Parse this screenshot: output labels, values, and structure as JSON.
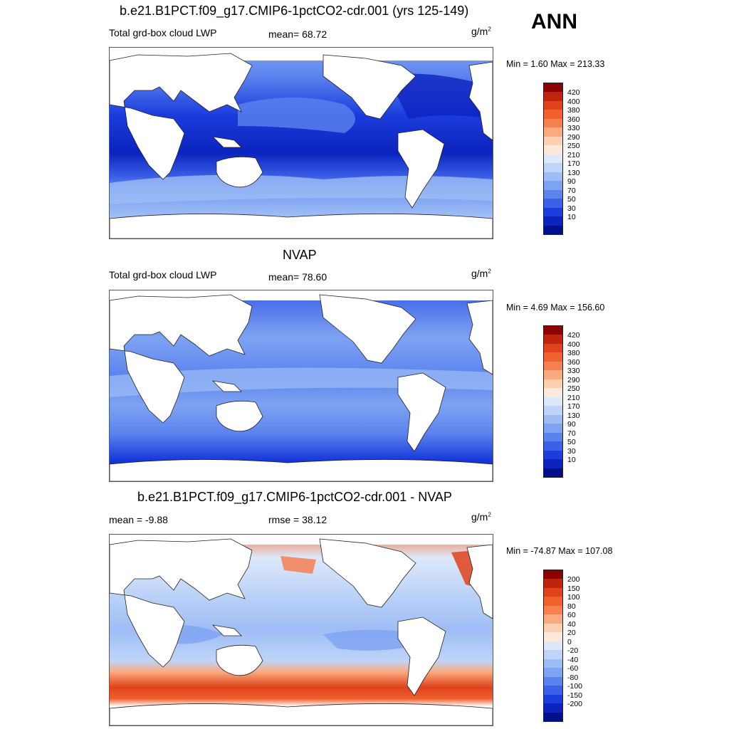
{
  "season": "ANN",
  "units_base": "g/m",
  "units_exp": "2",
  "panels": [
    {
      "title": "b.e21.B1PCT.f09_g17.CMIP6-1pctCO2-cdr.001 (yrs 125-149)",
      "left_label": "Total grd-box cloud LWP",
      "center_label": "mean=  68.72",
      "minmax": "Min =   1.60 Max = 213.33",
      "kind": "model"
    },
    {
      "title": "NVAP",
      "left_label": "Total grd-box cloud LWP",
      "center_label": "mean=  78.60",
      "minmax": "Min =   4.69 Max = 156.60",
      "kind": "obs"
    },
    {
      "title": "b.e21.B1PCT.f09_g17.CMIP6-1pctCO2-cdr.001 - NVAP",
      "left_label": "mean =  -9.88",
      "center_label": "rmse =  38.12",
      "minmax": "Min = -74.87 Max = 107.08",
      "kind": "diff"
    }
  ],
  "colorbars": {
    "field": {
      "labels": [
        "420",
        "400",
        "380",
        "360",
        "330",
        "290",
        "250",
        "210",
        "170",
        "130",
        "90",
        "70",
        "50",
        "30",
        "10"
      ],
      "colors": [
        "#8b0000",
        "#c1240e",
        "#e0421b",
        "#f0612e",
        "#f78052",
        "#fba97e",
        "#fdd0b2",
        "#fde9d9",
        "#dce9fb",
        "#bfd4f8",
        "#9ebdf5",
        "#7ea3f2",
        "#5b83ee",
        "#3c61e8",
        "#1b3ddd",
        "#0c23bf",
        "#000f8c"
      ]
    },
    "diff": {
      "labels": [
        "200",
        "150",
        "100",
        "80",
        "60",
        "40",
        "20",
        "0",
        "-20",
        "-40",
        "-60",
        "-80",
        "-100",
        "-150",
        "-200"
      ],
      "colors": [
        "#8b0000",
        "#c1240e",
        "#e0421b",
        "#f0612e",
        "#f78052",
        "#fba97e",
        "#fdd0b2",
        "#fde9d9",
        "#dce9fb",
        "#bfd4f8",
        "#9ebdf5",
        "#7ea3f2",
        "#5b83ee",
        "#3c61e8",
        "#1b3ddd",
        "#0c23bf",
        "#000f8c"
      ]
    }
  }
}
